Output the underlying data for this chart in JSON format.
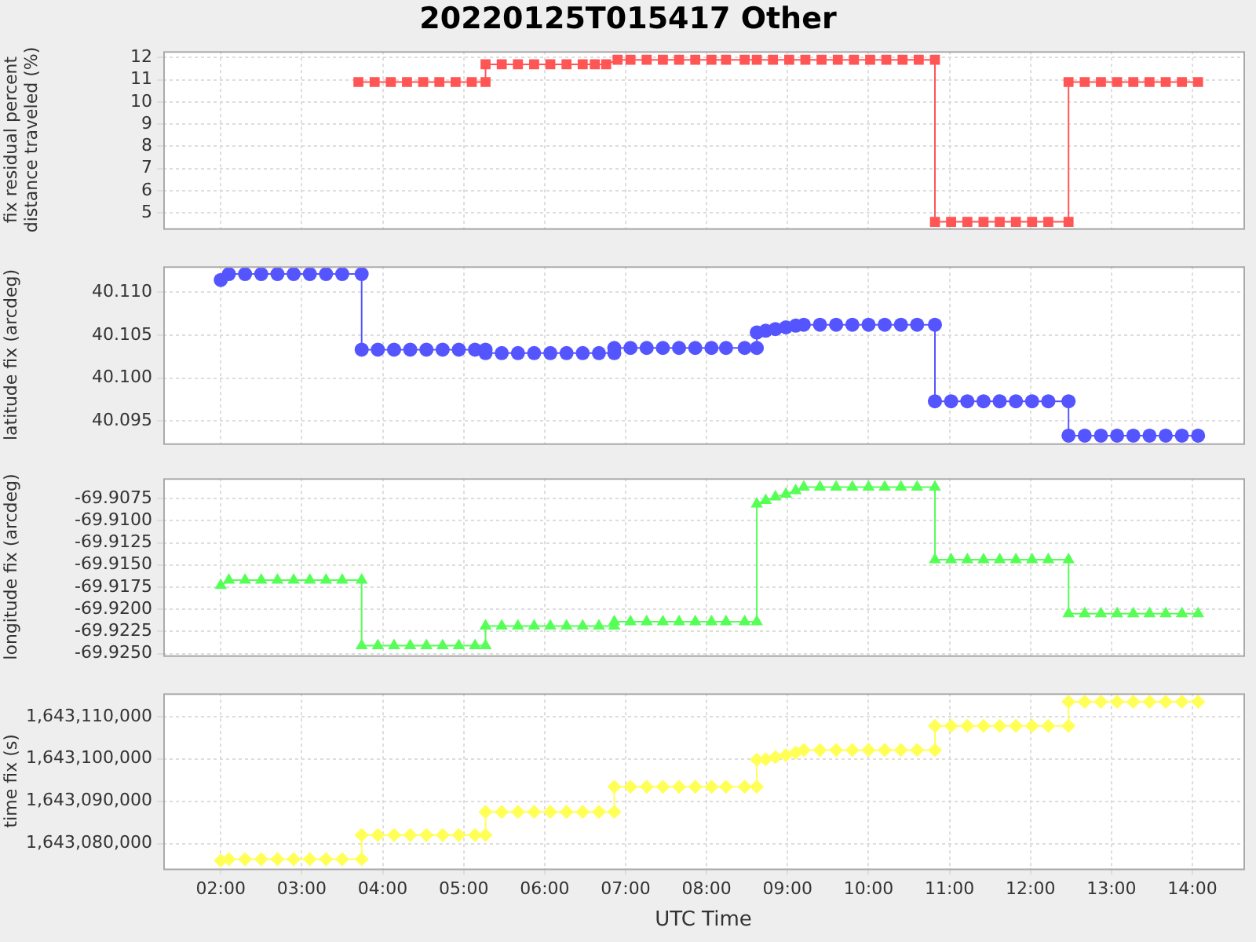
{
  "chart_data": [
    {
      "type": "line",
      "title": "20220125T015417 Other",
      "ylabel": "fix residual percent distance traveled (%)",
      "grid": true,
      "marker": "square",
      "tick_labels": "y",
      "xlim": [
        1.29,
        14.63
      ],
      "xticks": [
        {
          "value": 2,
          "label": null
        },
        {
          "value": 3,
          "label": null
        },
        {
          "value": 4,
          "label": null
        },
        {
          "value": 5,
          "label": null
        },
        {
          "value": 6,
          "label": null
        },
        {
          "value": 7,
          "label": null
        },
        {
          "value": 8,
          "label": null
        },
        {
          "value": 9,
          "label": null
        },
        {
          "value": 10,
          "label": null
        },
        {
          "value": 11,
          "label": null
        },
        {
          "value": 12,
          "label": null
        },
        {
          "value": 13,
          "label": null
        },
        {
          "value": 14,
          "label": null
        }
      ],
      "ylim": [
        4.31,
        12.29
      ],
      "yticks": [
        5,
        6,
        7,
        8,
        9,
        10,
        11,
        12
      ],
      "series": [
        {
          "color": "#ff5555",
          "x": [
            3.7,
            3.9,
            4.1,
            4.3,
            4.5,
            4.7,
            4.9,
            5.1,
            5.27,
            5.27,
            5.47,
            5.67,
            5.87,
            6.07,
            6.27,
            6.47,
            6.62,
            6.76,
            6.9,
            7.06,
            7.26,
            7.46,
            7.66,
            7.86,
            8.06,
            8.24,
            8.47,
            8.62,
            8.82,
            9.02,
            9.22,
            9.42,
            9.62,
            9.82,
            10.02,
            10.22,
            10.42,
            10.62,
            10.82,
            10.82,
            11.02,
            11.22,
            11.42,
            11.62,
            11.82,
            12.02,
            12.22,
            12.47,
            12.47,
            12.67,
            12.87,
            13.07,
            13.27,
            13.47,
            13.67,
            13.87,
            14.07
          ],
          "values": [
            10.9,
            10.9,
            10.9,
            10.9,
            10.9,
            10.9,
            10.9,
            10.9,
            10.9,
            11.7,
            11.7,
            11.7,
            11.7,
            11.7,
            11.7,
            11.7,
            11.7,
            11.7,
            11.9,
            11.9,
            11.9,
            11.9,
            11.9,
            11.9,
            11.9,
            11.9,
            11.9,
            11.9,
            11.9,
            11.9,
            11.9,
            11.9,
            11.9,
            11.9,
            11.9,
            11.9,
            11.9,
            11.9,
            11.9,
            4.6,
            4.6,
            4.6,
            4.6,
            4.6,
            4.6,
            4.6,
            4.6,
            4.6,
            10.9,
            10.9,
            10.9,
            10.9,
            10.9,
            10.9,
            10.9,
            10.9,
            10.9
          ]
        }
      ]
    },
    {
      "type": "line",
      "ylabel": "latitude fix (arcdeg)",
      "grid": true,
      "marker": "circle",
      "tick_labels": "y",
      "xlim": [
        1.29,
        14.63
      ],
      "xticks": [
        {
          "value": 2,
          "label": null
        },
        {
          "value": 3,
          "label": null
        },
        {
          "value": 4,
          "label": null
        },
        {
          "value": 5,
          "label": null
        },
        {
          "value": 6,
          "label": null
        },
        {
          "value": 7,
          "label": null
        },
        {
          "value": 8,
          "label": null
        },
        {
          "value": 9,
          "label": null
        },
        {
          "value": 10,
          "label": null
        },
        {
          "value": 11,
          "label": null
        },
        {
          "value": 12,
          "label": null
        },
        {
          "value": 13,
          "label": null
        },
        {
          "value": 14,
          "label": null
        }
      ],
      "ylim": [
        40.0924,
        40.113
      ],
      "yticks": [
        {
          "value": 40.095,
          "label": "40.095"
        },
        {
          "value": 40.1,
          "label": "40.100"
        },
        {
          "value": 40.105,
          "label": "40.105"
        },
        {
          "value": 40.11,
          "label": "40.110"
        }
      ],
      "series": [
        {
          "color": "#5555ff",
          "x": [
            2.0,
            2.1,
            2.3,
            2.5,
            2.7,
            2.9,
            3.1,
            3.3,
            3.5,
            3.74,
            3.74,
            3.94,
            4.14,
            4.34,
            4.54,
            4.74,
            4.94,
            5.14,
            5.27,
            5.27,
            5.47,
            5.67,
            5.87,
            6.07,
            6.27,
            6.47,
            6.67,
            6.86,
            6.86,
            7.06,
            7.26,
            7.46,
            7.66,
            7.86,
            8.06,
            8.24,
            8.47,
            8.62,
            8.62,
            8.73,
            8.85,
            8.98,
            9.1,
            9.2,
            9.4,
            9.6,
            9.8,
            10.0,
            10.2,
            10.4,
            10.6,
            10.82,
            10.82,
            11.02,
            11.22,
            11.42,
            11.62,
            11.82,
            12.02,
            12.22,
            12.47,
            12.47,
            12.67,
            12.87,
            13.07,
            13.27,
            13.47,
            13.67,
            13.87,
            14.07
          ],
          "values": [
            40.1114,
            40.1121,
            40.1121,
            40.1121,
            40.1121,
            40.1121,
            40.1121,
            40.1121,
            40.1121,
            40.1121,
            40.1033,
            40.1033,
            40.1033,
            40.1033,
            40.1033,
            40.1033,
            40.1033,
            40.1033,
            40.1033,
            40.1029,
            40.1029,
            40.1029,
            40.1029,
            40.1029,
            40.1029,
            40.1029,
            40.1029,
            40.1029,
            40.1035,
            40.1035,
            40.1035,
            40.1035,
            40.1035,
            40.1035,
            40.1035,
            40.1035,
            40.1035,
            40.1035,
            40.1053,
            40.1055,
            40.1057,
            40.1059,
            40.1061,
            40.1062,
            40.1062,
            40.1062,
            40.1062,
            40.1062,
            40.1062,
            40.1062,
            40.1062,
            40.1062,
            40.0973,
            40.0973,
            40.0973,
            40.0973,
            40.0973,
            40.0973,
            40.0973,
            40.0973,
            40.0973,
            40.0933,
            40.0933,
            40.0933,
            40.0933,
            40.0933,
            40.0933,
            40.0933,
            40.0933,
            40.0933
          ]
        }
      ]
    },
    {
      "type": "line",
      "ylabel": "longitude fix (arcdeg)",
      "grid": true,
      "marker": "triangle",
      "tick_labels": "y",
      "xlim": [
        1.29,
        14.63
      ],
      "xticks": [
        {
          "value": 2,
          "label": null
        },
        {
          "value": 3,
          "label": null
        },
        {
          "value": 4,
          "label": null
        },
        {
          "value": 5,
          "label": null
        },
        {
          "value": 6,
          "label": null
        },
        {
          "value": 7,
          "label": null
        },
        {
          "value": 8,
          "label": null
        },
        {
          "value": 9,
          "label": null
        },
        {
          "value": 10,
          "label": null
        },
        {
          "value": 11,
          "label": null
        },
        {
          "value": 12,
          "label": null
        },
        {
          "value": 13,
          "label": null
        },
        {
          "value": 14,
          "label": null
        }
      ],
      "ylim": [
        -69.9252,
        -69.9052
      ],
      "yticks": [
        {
          "value": -69.925,
          "label": "-69.9250"
        },
        {
          "value": -69.9225,
          "label": "-69.9225"
        },
        {
          "value": -69.92,
          "label": "-69.9200"
        },
        {
          "value": -69.9175,
          "label": "-69.9175"
        },
        {
          "value": -69.915,
          "label": "-69.9150"
        },
        {
          "value": -69.9125,
          "label": "-69.9125"
        },
        {
          "value": -69.91,
          "label": "-69.9100"
        },
        {
          "value": -69.9075,
          "label": "-69.9075"
        }
      ],
      "series": [
        {
          "color": "#55ff55",
          "x": [
            2.0,
            2.1,
            2.3,
            2.5,
            2.7,
            2.9,
            3.1,
            3.3,
            3.5,
            3.74,
            3.74,
            3.94,
            4.14,
            4.34,
            4.54,
            4.74,
            4.94,
            5.14,
            5.27,
            5.27,
            5.47,
            5.67,
            5.87,
            6.07,
            6.27,
            6.47,
            6.67,
            6.86,
            6.86,
            7.06,
            7.26,
            7.46,
            7.66,
            7.86,
            8.06,
            8.24,
            8.47,
            8.62,
            8.62,
            8.73,
            8.85,
            8.98,
            9.1,
            9.2,
            9.4,
            9.6,
            9.8,
            10.0,
            10.2,
            10.4,
            10.6,
            10.82,
            10.82,
            11.02,
            11.22,
            11.42,
            11.62,
            11.82,
            12.02,
            12.22,
            12.47,
            12.47,
            12.67,
            12.87,
            13.07,
            13.27,
            13.47,
            13.67,
            13.87,
            14.07
          ],
          "values": [
            -69.9173,
            -69.9167,
            -69.9167,
            -69.9167,
            -69.9167,
            -69.9167,
            -69.9167,
            -69.9167,
            -69.9167,
            -69.9167,
            -69.9241,
            -69.9241,
            -69.9241,
            -69.9241,
            -69.9241,
            -69.9241,
            -69.9241,
            -69.9241,
            -69.9241,
            -69.9219,
            -69.9219,
            -69.9219,
            -69.9219,
            -69.9219,
            -69.9219,
            -69.9219,
            -69.9219,
            -69.9219,
            -69.9214,
            -69.9214,
            -69.9214,
            -69.9214,
            -69.9214,
            -69.9214,
            -69.9214,
            -69.9214,
            -69.9214,
            -69.9214,
            -69.9081,
            -69.9077,
            -69.9073,
            -69.907,
            -69.9066,
            -69.9062,
            -69.9062,
            -69.9062,
            -69.9062,
            -69.9062,
            -69.9062,
            -69.9062,
            -69.9062,
            -69.9062,
            -69.9144,
            -69.9144,
            -69.9144,
            -69.9144,
            -69.9144,
            -69.9144,
            -69.9144,
            -69.9144,
            -69.9144,
            -69.9205,
            -69.9205,
            -69.9205,
            -69.9205,
            -69.9205,
            -69.9205,
            -69.9205,
            -69.9205,
            -69.9205
          ]
        }
      ]
    },
    {
      "type": "line",
      "ylabel": "time fix (s)",
      "xlabel": "UTC Time",
      "grid": true,
      "marker": "diamond",
      "xlim": [
        1.29,
        14.63
      ],
      "xticks": [
        {
          "value": 2,
          "label": "02:00"
        },
        {
          "value": 3,
          "label": "03:00"
        },
        {
          "value": 4,
          "label": "04:00"
        },
        {
          "value": 5,
          "label": "05:00"
        },
        {
          "value": 6,
          "label": "06:00"
        },
        {
          "value": 7,
          "label": "07:00"
        },
        {
          "value": 8,
          "label": "08:00"
        },
        {
          "value": 9,
          "label": "09:00"
        },
        {
          "value": 10,
          "label": "10:00"
        },
        {
          "value": 11,
          "label": "11:00"
        },
        {
          "value": 12,
          "label": "12:00"
        },
        {
          "value": 13,
          "label": "13:00"
        },
        {
          "value": 14,
          "label": "14:00"
        }
      ],
      "ylim": [
        1643074100,
        1643115500
      ],
      "yticks": [
        {
          "value": 1643080000,
          "label": "1,643,080,000"
        },
        {
          "value": 1643090000,
          "label": "1,643,090,000"
        },
        {
          "value": 1643100000,
          "label": "1,643,100,000"
        },
        {
          "value": 1643110000,
          "label": "1,643,110,000"
        }
      ],
      "series": [
        {
          "color": "#ffff55",
          "x": [
            2.0,
            2.1,
            2.3,
            2.5,
            2.7,
            2.9,
            3.1,
            3.3,
            3.5,
            3.74,
            3.74,
            3.94,
            4.14,
            4.34,
            4.54,
            4.74,
            4.94,
            5.14,
            5.27,
            5.27,
            5.47,
            5.67,
            5.87,
            6.07,
            6.27,
            6.47,
            6.67,
            6.86,
            6.86,
            7.06,
            7.26,
            7.46,
            7.66,
            7.86,
            8.06,
            8.24,
            8.47,
            8.62,
            8.62,
            8.73,
            8.85,
            8.98,
            9.1,
            9.2,
            9.4,
            9.6,
            9.8,
            10.0,
            10.2,
            10.4,
            10.6,
            10.82,
            10.82,
            11.02,
            11.22,
            11.42,
            11.62,
            11.82,
            12.02,
            12.22,
            12.47,
            12.47,
            12.67,
            12.87,
            13.07,
            13.27,
            13.47,
            13.67,
            13.87,
            14.07
          ],
          "values": [
            1643076000,
            1643076300,
            1643076300,
            1643076300,
            1643076300,
            1643076300,
            1643076300,
            1643076300,
            1643076300,
            1643076300,
            1643082000,
            1643082000,
            1643082000,
            1643082000,
            1643082000,
            1643082000,
            1643082000,
            1643082000,
            1643082000,
            1643087500,
            1643087500,
            1643087500,
            1643087500,
            1643087500,
            1643087500,
            1643087500,
            1643087500,
            1643087500,
            1643093400,
            1643093400,
            1643093400,
            1643093400,
            1643093400,
            1643093400,
            1643093400,
            1643093400,
            1643093400,
            1643093400,
            1643099800,
            1643099900,
            1643100400,
            1643100900,
            1643101500,
            1643102100,
            1643102100,
            1643102100,
            1643102100,
            1643102100,
            1643102100,
            1643102100,
            1643102100,
            1643102100,
            1643107800,
            1643107800,
            1643107800,
            1643107800,
            1643107800,
            1643107800,
            1643107800,
            1643107800,
            1643107800,
            1643113500,
            1643113500,
            1643113500,
            1643113500,
            1643113500,
            1643113500,
            1643113500,
            1643113500,
            1643113500
          ]
        }
      ]
    }
  ]
}
